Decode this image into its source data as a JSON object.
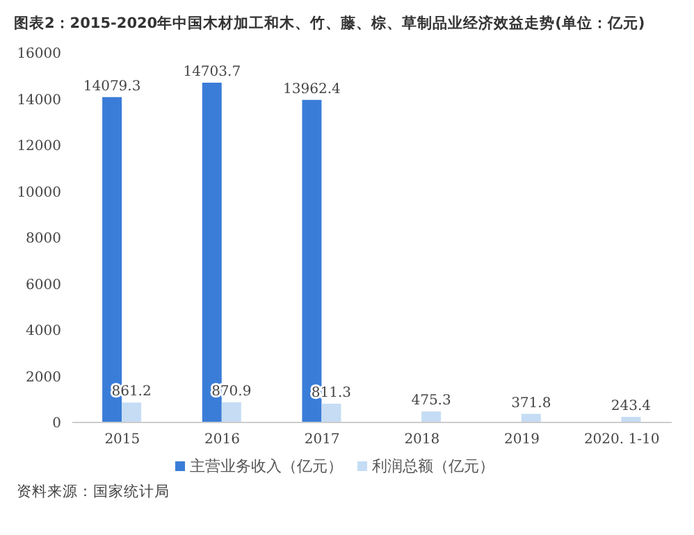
{
  "chart_data": {
    "type": "bar",
    "title": "图表2：2015-2020年中国木材加工和木、竹、藤、棕、草制品业经济效益走势(单位：亿元)",
    "categories": [
      "2015",
      "2016",
      "2017",
      "2018",
      "2019",
      "2020. 1-10"
    ],
    "series": [
      {
        "name": "主营业务收入（亿元）",
        "color": "#3a7dd8",
        "values": [
          14079.3,
          14703.7,
          13962.4,
          null,
          null,
          null
        ],
        "value_labels": [
          "14079.3",
          "14703.7",
          "13962.4",
          null,
          null,
          null
        ]
      },
      {
        "name": "利润总额（亿元）",
        "color": "#c5dcf4",
        "values": [
          861.2,
          870.9,
          811.3,
          475.3,
          371.8,
          243.4
        ],
        "value_labels": [
          "861.2",
          "870.9",
          "811.3",
          "475.3",
          "371.8",
          "243.4"
        ]
      }
    ],
    "ylim": [
      0,
      16000
    ],
    "yticks": [
      0,
      2000,
      4000,
      6000,
      8000,
      10000,
      12000,
      14000,
      16000
    ],
    "grid": false,
    "legend": "bottom",
    "annotations": [
      "资料来源：国家统计局"
    ]
  }
}
